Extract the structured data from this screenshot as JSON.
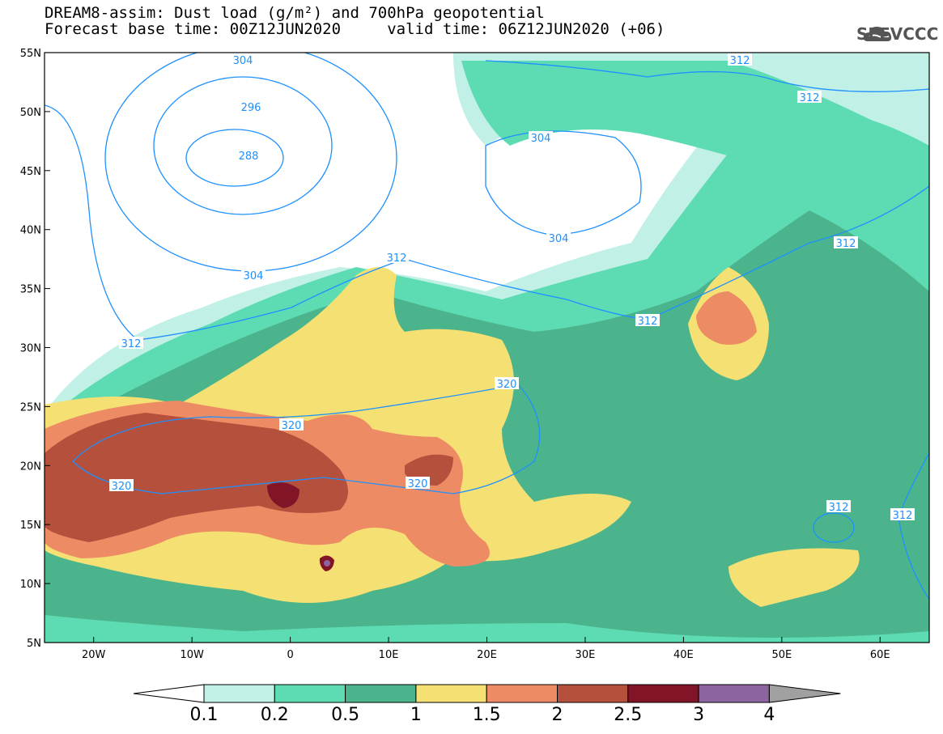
{
  "header": {
    "title_line1": "DREAM8-assim: Dust load (g/m²) and 700hPa geopotential",
    "title_line2": "Forecast base time: 00Z12JUN2020     valid time: 06Z12JUN2020 (+06)",
    "logo_text": "SEEVCCC",
    "logo_icon": "cloud-logo-icon"
  },
  "map": {
    "lon_range": [
      -25,
      65
    ],
    "lat_range": [
      5,
      55
    ],
    "lon_labels": [
      "20W",
      "10W",
      "0",
      "10E",
      "20E",
      "30E",
      "40E",
      "50E",
      "60E"
    ],
    "lon_values": [
      -20,
      -10,
      0,
      10,
      20,
      30,
      40,
      50,
      60
    ],
    "lat_labels": [
      "55N",
      "50N",
      "45N",
      "40N",
      "35N",
      "30N",
      "25N",
      "20N",
      "15N",
      "10N",
      "5N"
    ],
    "lat_values": [
      55,
      50,
      45,
      40,
      35,
      30,
      25,
      20,
      15,
      10,
      5
    ],
    "contour_labels": [
      "304",
      "296",
      "288",
      "304",
      "312",
      "312",
      "312",
      "304",
      "304",
      "312",
      "312",
      "312",
      "320",
      "320",
      "320",
      "320",
      "312",
      "312"
    ]
  },
  "colorbar": {
    "levels": [
      "0.1",
      "0.2",
      "0.5",
      "1",
      "1.5",
      "2",
      "2.5",
      "3",
      "4"
    ],
    "colors": [
      "#c0f0e6",
      "#5ddcb4",
      "#4cb48c",
      "#f5e173",
      "#ed8c64",
      "#b4503c",
      "#821428",
      "#8c64a0",
      "#a0a0a0"
    ]
  }
}
